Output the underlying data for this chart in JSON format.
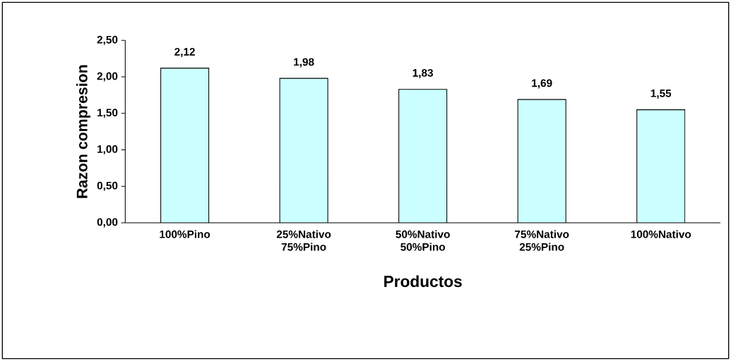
{
  "chart_data": {
    "type": "bar",
    "xlabel": "Productos",
    "ylabel": "Razon compresion",
    "categories": [
      "100%Pino",
      "25%Nativo 75%Pino",
      "50%Nativo 50%Pino",
      "75%Nativo 25%Pino",
      "100%Nativo"
    ],
    "values": [
      2.12,
      1.98,
      1.83,
      1.69,
      1.55
    ],
    "value_labels": [
      "2,12",
      "1,98",
      "1,83",
      "1,69",
      "1,55"
    ],
    "color": "#ccffff",
    "ylim": [
      0,
      2.5
    ],
    "yticks": [
      {
        "value": 0,
        "label": "0,00"
      },
      {
        "value": 0.5,
        "label": "0,50"
      },
      {
        "value": 1,
        "label": "1,00"
      },
      {
        "value": 1.5,
        "label": "1,50"
      },
      {
        "value": 2,
        "label": "2,00"
      },
      {
        "value": 2.5,
        "label": "2,50"
      }
    ],
    "grid": false
  }
}
